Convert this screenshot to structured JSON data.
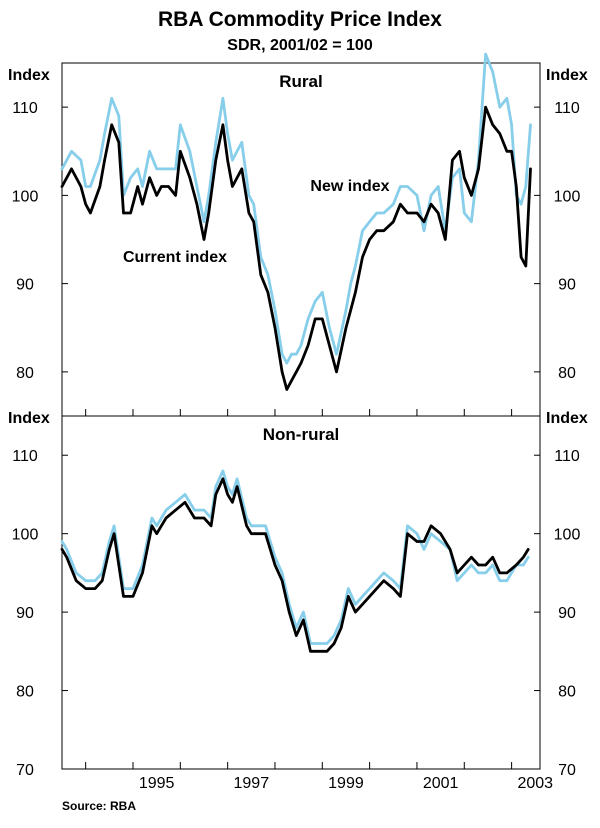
{
  "title": "RBA Commodity Price Index",
  "subtitle": "SDR, 2001/02 = 100",
  "source": "Source: RBA",
  "colors": {
    "current": "#000000",
    "new": "#87CEEB",
    "frame": "#000000"
  },
  "chart_data": {
    "type": "line",
    "title": "RBA Commodity Price Index",
    "subtitle": "SDR, 2001/02 = 100",
    "x_ticks": [
      "1995",
      "1997",
      "1999",
      "2001",
      "2003"
    ],
    "xlim": [
      1993.5,
      2003.6
    ],
    "panels": [
      {
        "name": "Rural",
        "ylabel_left": "Index",
        "ylabel_right": "Index",
        "ylim": [
          75,
          115
        ],
        "y_ticks": [
          80,
          90,
          100,
          110
        ],
        "annotations": [
          {
            "text": "New index",
            "series": "New index"
          },
          {
            "text": "Current index",
            "series": "Current index"
          }
        ],
        "series": [
          {
            "name": "Current index",
            "color": "#000000",
            "x": [
              1993.5,
              1993.7,
              1993.9,
              1994.0,
              1994.1,
              1994.3,
              1994.4,
              1994.55,
              1994.7,
              1994.8,
              1994.95,
              1995.1,
              1995.2,
              1995.35,
              1995.5,
              1995.6,
              1995.75,
              1995.9,
              1996.0,
              1996.2,
              1996.35,
              1996.5,
              1996.6,
              1996.75,
              1996.9,
              1997.0,
              1997.1,
              1997.3,
              1997.45,
              1997.55,
              1997.7,
              1997.85,
              1998.0,
              1998.15,
              1998.25,
              1998.35,
              1998.45,
              1998.55,
              1998.7,
              1998.85,
              1999.0,
              1999.15,
              1999.3,
              1999.5,
              1999.6,
              1999.7,
              1999.85,
              2000.0,
              2000.15,
              2000.3,
              2000.5,
              2000.65,
              2000.8,
              2001.0,
              2001.15,
              2001.3,
              2001.45,
              2001.6,
              2001.75,
              2001.9,
              2002.0,
              2002.15,
              2002.3,
              2002.45,
              2002.6,
              2002.75,
              2002.9,
              2003.0,
              2003.1,
              2003.2,
              2003.3,
              2003.4
            ],
            "y": [
              101,
              103,
              101,
              99,
              98,
              101,
              104,
              108,
              106,
              98,
              98,
              101,
              99,
              102,
              100,
              101,
              101,
              100,
              105,
              102,
              99,
              95,
              98,
              104,
              108,
              104,
              101,
              103,
              98,
              97,
              91,
              89,
              85,
              80,
              78,
              79,
              80,
              81,
              83,
              86,
              86,
              83,
              80,
              85,
              87,
              89,
              93,
              95,
              96,
              96,
              97,
              99,
              98,
              98,
              97,
              99,
              98,
              95,
              104,
              105,
              102,
              100,
              103,
              110,
              108,
              107,
              105,
              105,
              101,
              93,
              92,
              103
            ]
          },
          {
            "name": "New index",
            "color": "#87CEEB",
            "x": [
              1993.5,
              1993.7,
              1993.9,
              1994.0,
              1994.1,
              1994.3,
              1994.4,
              1994.55,
              1994.7,
              1994.8,
              1994.95,
              1995.1,
              1995.2,
              1995.35,
              1995.5,
              1995.6,
              1995.75,
              1995.9,
              1996.0,
              1996.2,
              1996.35,
              1996.5,
              1996.6,
              1996.75,
              1996.9,
              1997.0,
              1997.1,
              1997.3,
              1997.45,
              1997.55,
              1997.7,
              1997.85,
              1998.0,
              1998.15,
              1998.25,
              1998.35,
              1998.45,
              1998.55,
              1998.7,
              1998.85,
              1999.0,
              1999.15,
              1999.3,
              1999.5,
              1999.6,
              1999.7,
              1999.85,
              2000.0,
              2000.15,
              2000.3,
              2000.5,
              2000.65,
              2000.8,
              2001.0,
              2001.15,
              2001.3,
              2001.45,
              2001.6,
              2001.75,
              2001.9,
              2002.0,
              2002.15,
              2002.3,
              2002.45,
              2002.6,
              2002.75,
              2002.9,
              2003.0,
              2003.1,
              2003.2,
              2003.3,
              2003.4
            ],
            "y": [
              103,
              105,
              104,
              101,
              101,
              104,
              107,
              111,
              109,
              100,
              102,
              103,
              101,
              105,
              103,
              103,
              103,
              103,
              108,
              105,
              101,
              97,
              100,
              106,
              111,
              107,
              104,
              106,
              100,
              99,
              93,
              91,
              87,
              82,
              81,
              82,
              82,
              83,
              86,
              88,
              89,
              85,
              82,
              87,
              90,
              92,
              96,
              97,
              98,
              98,
              99,
              101,
              101,
              100,
              96,
              100,
              101,
              96,
              102,
              103,
              98,
              97,
              104,
              116,
              114,
              110,
              111,
              108,
              100,
              99,
              101,
              108
            ]
          }
        ]
      },
      {
        "name": "Non-rural",
        "ylabel_left": "Index",
        "ylabel_right": "Index",
        "ylim": [
          70,
          115
        ],
        "y_ticks": [
          70,
          80,
          90,
          100,
          110
        ],
        "annotations": [],
        "series": [
          {
            "name": "Current index",
            "color": "#000000",
            "x": [
              1993.5,
              1993.6,
              1993.8,
              1994.0,
              1994.2,
              1994.35,
              1994.5,
              1994.6,
              1994.8,
              1995.0,
              1995.2,
              1995.4,
              1995.5,
              1995.7,
              1995.9,
              1996.1,
              1996.3,
              1996.5,
              1996.65,
              1996.75,
              1996.9,
              1997.0,
              1997.1,
              1997.2,
              1997.4,
              1997.5,
              1997.6,
              1997.8,
              1998.0,
              1998.15,
              1998.3,
              1998.45,
              1998.6,
              1998.75,
              1998.9,
              1999.1,
              1999.25,
              1999.4,
              1999.55,
              1999.7,
              1999.85,
              2000.0,
              2000.15,
              2000.3,
              2000.5,
              2000.65,
              2000.8,
              2001.0,
              2001.15,
              2001.3,
              2001.5,
              2001.7,
              2001.85,
              2002.0,
              2002.15,
              2002.3,
              2002.45,
              2002.6,
              2002.75,
              2002.9,
              2003.1,
              2003.25,
              2003.35
            ],
            "y": [
              98,
              97,
              94,
              93,
              93,
              94,
              98,
              100,
              92,
              92,
              95,
              101,
              100,
              102,
              103,
              104,
              102,
              102,
              101,
              105,
              107,
              105,
              104,
              106,
              101,
              100,
              100,
              100,
              96,
              94,
              90,
              87,
              89,
              85,
              85,
              85,
              86,
              88,
              92,
              90,
              91,
              92,
              93,
              94,
              93,
              92,
              100,
              99,
              99,
              101,
              100,
              98,
              95,
              96,
              97,
              96,
              96,
              97,
              95,
              95,
              96,
              97,
              98
            ]
          },
          {
            "name": "New index",
            "color": "#87CEEB",
            "x": [
              1993.5,
              1993.6,
              1993.8,
              1994.0,
              1994.2,
              1994.35,
              1994.5,
              1994.6,
              1994.8,
              1995.0,
              1995.2,
              1995.4,
              1995.5,
              1995.7,
              1995.9,
              1996.1,
              1996.3,
              1996.5,
              1996.65,
              1996.75,
              1996.9,
              1997.0,
              1997.1,
              1997.2,
              1997.4,
              1997.5,
              1997.6,
              1997.8,
              1998.0,
              1998.15,
              1998.3,
              1998.45,
              1998.6,
              1998.75,
              1998.9,
              1999.1,
              1999.25,
              1999.4,
              1999.55,
              1999.7,
              1999.85,
              2000.0,
              2000.15,
              2000.3,
              2000.5,
              2000.65,
              2000.8,
              2001.0,
              2001.15,
              2001.3,
              2001.5,
              2001.7,
              2001.85,
              2002.0,
              2002.15,
              2002.3,
              2002.45,
              2002.6,
              2002.75,
              2002.9,
              2003.1,
              2003.25,
              2003.35
            ],
            "y": [
              99,
              98,
              95,
              94,
              94,
              95,
              99,
              101,
              93,
              93,
              96,
              102,
              101,
              103,
              104,
              105,
              103,
              103,
              102,
              106,
              108,
              106,
              105,
              107,
              102,
              101,
              101,
              101,
              97,
              95,
              91,
              88,
              90,
              86,
              86,
              86,
              87,
              89,
              93,
              91,
              92,
              93,
              94,
              95,
              94,
              93,
              101,
              100,
              98,
              100,
              99,
              98,
              94,
              95,
              96,
              95,
              95,
              96,
              94,
              94,
              96,
              96,
              97
            ]
          }
        ]
      }
    ]
  }
}
